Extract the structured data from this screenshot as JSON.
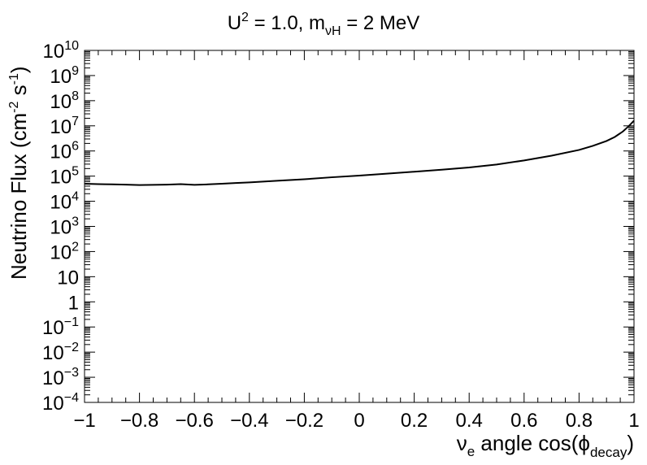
{
  "chart_data": {
    "type": "line",
    "title": {
      "u_base": "U",
      "u_exp": "2",
      "middle": " = 1.0, m",
      "m_sub": "νH",
      "rest": " = 2 MeV"
    },
    "xlabel": {
      "nu": "ν",
      "nu_sub": "e",
      "text": " angle cos(ϕ",
      "phi_sub": "decay",
      "close": ")"
    },
    "ylabel": {
      "part1": "Neutrino Flux (cm",
      "exp1": "-2",
      "part2": " s",
      "exp2": "-1",
      "close": ")"
    },
    "x_tick_labels": [
      "−1",
      "−0.8",
      "−0.6",
      "−0.4",
      "−0.2",
      "0",
      "0.2",
      "0.4",
      "0.6",
      "0.8",
      "1"
    ],
    "y_tick_labels": [
      {
        "base": "10",
        "exp": "10"
      },
      {
        "base": "10",
        "exp": "9"
      },
      {
        "base": "10",
        "exp": "8"
      },
      {
        "base": "10",
        "exp": "7"
      },
      {
        "base": "10",
        "exp": "6"
      },
      {
        "base": "10",
        "exp": "5"
      },
      {
        "base": "10",
        "exp": "4"
      },
      {
        "base": "10",
        "exp": "3"
      },
      {
        "base": "10",
        "exp": "2"
      },
      {
        "base": "10",
        "exp": ""
      },
      {
        "base": "1",
        "exp": ""
      },
      {
        "base": "10",
        "exp": "−1"
      },
      {
        "base": "10",
        "exp": "−2"
      },
      {
        "base": "10",
        "exp": "−3"
      },
      {
        "base": "10",
        "exp": "−4"
      }
    ],
    "xlim": [
      -1,
      1
    ],
    "ylim_log10": [
      -4,
      10
    ],
    "yscale": "log",
    "grid": false,
    "series": [
      {
        "x": [
          -1,
          -0.95,
          -0.9,
          -0.85,
          -0.8,
          -0.75,
          -0.7,
          -0.65,
          -0.6,
          -0.55,
          -0.5,
          -0.45,
          -0.4,
          -0.3,
          -0.2,
          -0.1,
          0,
          0.1,
          0.2,
          0.3,
          0.4,
          0.5,
          0.6,
          0.7,
          0.8,
          0.85,
          0.9,
          0.93,
          0.96,
          0.98,
          1.0
        ],
        "y": [
          50000,
          48000,
          47000,
          46000,
          44000,
          45000,
          46000,
          48000,
          45000,
          47000,
          50000,
          53000,
          56000,
          65000,
          75000,
          90000,
          105000,
          125000,
          150000,
          180000,
          220000,
          290000,
          420000,
          650000,
          1100000,
          1600000,
          2500000,
          3600000,
          6000000,
          9500000,
          16000000
        ]
      }
    ]
  }
}
